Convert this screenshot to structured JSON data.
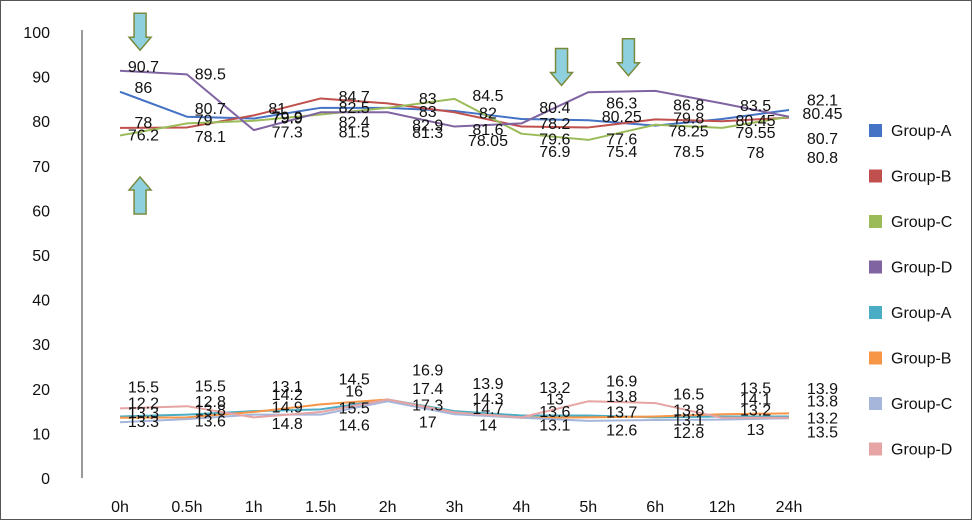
{
  "chart_data": {
    "type": "line",
    "title": "",
    "xlabel": "",
    "ylabel": "",
    "ylim": [
      0,
      100
    ],
    "yticks": [
      "0",
      "10",
      "20",
      "30",
      "40",
      "50",
      "60",
      "70",
      "80",
      "90",
      "100"
    ],
    "categories": [
      "0h",
      "0.5h",
      "1h",
      "1.5h",
      "2h",
      "3h",
      "4h",
      "5h",
      "6h",
      "12h",
      "24h"
    ],
    "grid": false,
    "legend_position": "right",
    "series": [
      {
        "name": "Group-A",
        "color": "#4472C4",
        "values": [
          86.6,
          81.0,
          80.6,
          83.0,
          83.0,
          82.3,
          80.5,
          80.2,
          79.0,
          80.5,
          82.5
        ]
      },
      {
        "name": "Group-B",
        "color": "#C0504D",
        "values": [
          78.5,
          78.6,
          81.3,
          85.1,
          84.0,
          82.0,
          78.8,
          78.6,
          80.4,
          80.0,
          80.8
        ]
      },
      {
        "name": "Group-C",
        "color": "#9BBB59",
        "values": [
          76.8,
          79.5,
          80.1,
          81.5,
          83.0,
          85.0,
          77.2,
          75.8,
          79.2,
          78.5,
          81.0
        ]
      },
      {
        "name": "Group-D",
        "color": "#8064A2",
        "values": [
          91.3,
          90.5,
          78.0,
          82.0,
          82.0,
          78.8,
          79.5,
          86.5,
          86.8,
          84.0,
          81.0
        ]
      },
      {
        "name": "Group-A",
        "color": "#4BACC6",
        "values": [
          13.8,
          14.2,
          15.0,
          15.4,
          17.6,
          15.0,
          14.0,
          14.0,
          13.6,
          13.8,
          13.8
        ]
      },
      {
        "name": "Group-B",
        "color": "#F79646",
        "values": [
          13.5,
          13.6,
          14.8,
          16.5,
          17.6,
          14.7,
          13.5,
          13.6,
          13.8,
          14.3,
          14.5
        ]
      },
      {
        "name": "Group-C",
        "color": "#A5B6DA",
        "values": [
          12.5,
          13.2,
          14.2,
          14.2,
          17.2,
          14.3,
          13.5,
          12.8,
          13.0,
          13.1,
          13.4
        ]
      },
      {
        "name": "Group-D",
        "color": "#E6A4A4",
        "values": [
          15.6,
          16.1,
          13.6,
          14.8,
          17.6,
          14.7,
          13.6,
          17.2,
          16.8,
          13.5,
          13.5
        ]
      }
    ],
    "data_labels": [
      {
        "text": "90.7",
        "cat": 0.35,
        "v": 91
      },
      {
        "text": "86",
        "cat": 0.35,
        "v": 86.3
      },
      {
        "text": "78",
        "cat": 0.35,
        "v": 78.5
      },
      {
        "text": "76.2",
        "cat": 0.35,
        "v": 75.7
      },
      {
        "text": "89.5",
        "cat": 1.35,
        "v": 89.3
      },
      {
        "text": "80.7",
        "cat": 1.35,
        "v": 81.6
      },
      {
        "text": "79",
        "cat": 1.25,
        "v": 79.0
      },
      {
        "text": "78.1",
        "cat": 1.35,
        "v": 75.3
      },
      {
        "text": "81",
        "cat": 2.35,
        "v": 81.6
      },
      {
        "text": "79.9",
        "cat": 2.5,
        "v": 79.7
      },
      {
        "text": "79.9",
        "cat": 2.5,
        "v": 79.5
      },
      {
        "text": "77.3",
        "cat": 2.5,
        "v": 76.3
      },
      {
        "text": "84.7",
        "cat": 3.5,
        "v": 84.3
      },
      {
        "text": "82.5",
        "cat": 3.5,
        "v": 81.8
      },
      {
        "text": "82.4",
        "cat": 3.5,
        "v": 78.6
      },
      {
        "text": "81.5",
        "cat": 3.5,
        "v": 76.3
      },
      {
        "text": "83",
        "cat": 4.6,
        "v": 83.9
      },
      {
        "text": "83",
        "cat": 4.6,
        "v": 80.9
      },
      {
        "text": "82.9",
        "cat": 4.6,
        "v": 77.9
      },
      {
        "text": "81.3",
        "cat": 4.6,
        "v": 76.2
      },
      {
        "text": "84.5",
        "cat": 5.5,
        "v": 84.5
      },
      {
        "text": "82",
        "cat": 5.5,
        "v": 80.6
      },
      {
        "text": "81.6",
        "cat": 5.5,
        "v": 76.9
      },
      {
        "text": "78.05",
        "cat": 5.5,
        "v": 74.4
      },
      {
        "text": "80.4",
        "cat": 6.5,
        "v": 81.8
      },
      {
        "text": "78.2",
        "cat": 6.5,
        "v": 78.3
      },
      {
        "text": "79.6",
        "cat": 6.5,
        "v": 74.8
      },
      {
        "text": "76.9",
        "cat": 6.5,
        "v": 72.0
      },
      {
        "text": "86.3",
        "cat": 7.5,
        "v": 82.8
      },
      {
        "text": "80.25",
        "cat": 7.5,
        "v": 79.8
      },
      {
        "text": "77.6",
        "cat": 7.5,
        "v": 74.8
      },
      {
        "text": "75.4",
        "cat": 7.5,
        "v": 72.0
      },
      {
        "text": "86.8",
        "cat": 8.5,
        "v": 82.4
      },
      {
        "text": "79.8",
        "cat": 8.5,
        "v": 79.5
      },
      {
        "text": "78.25",
        "cat": 8.5,
        "v": 76.6
      },
      {
        "text": "78.5",
        "cat": 8.5,
        "v": 72.0
      },
      {
        "text": "83.5",
        "cat": 9.5,
        "v": 82.3
      },
      {
        "text": "80.45",
        "cat": 9.5,
        "v": 78.9
      },
      {
        "text": "79.55",
        "cat": 9.5,
        "v": 76.2
      },
      {
        "text": "78",
        "cat": 9.5,
        "v": 71.8
      },
      {
        "text": "82.1",
        "cat": 10.5,
        "v": 83.5
      },
      {
        "text": "80.45",
        "cat": 10.5,
        "v": 80.5
      },
      {
        "text": "80.7",
        "cat": 10.5,
        "v": 74.9
      },
      {
        "text": "80.8",
        "cat": 10.5,
        "v": 70.6
      },
      {
        "text": "15.5",
        "cat": 0.35,
        "v": 19.2
      },
      {
        "text": "12.2",
        "cat": 0.35,
        "v": 15.6
      },
      {
        "text": "13.3",
        "cat": 0.35,
        "v": 13.5
      },
      {
        "text": "13.3",
        "cat": 0.35,
        "v": 11.4
      },
      {
        "text": "15.5",
        "cat": 1.35,
        "v": 19.4
      },
      {
        "text": "12.8",
        "cat": 1.35,
        "v": 15.9
      },
      {
        "text": "13.8",
        "cat": 1.35,
        "v": 14.0
      },
      {
        "text": "13.6",
        "cat": 1.35,
        "v": 11.6
      },
      {
        "text": "13.1",
        "cat": 2.5,
        "v": 19.3
      },
      {
        "text": "14.2",
        "cat": 2.5,
        "v": 17.5
      },
      {
        "text": "14.9",
        "cat": 2.5,
        "v": 14.7
      },
      {
        "text": "14.8",
        "cat": 2.5,
        "v": 11.0
      },
      {
        "text": "14.5",
        "cat": 3.5,
        "v": 21.0
      },
      {
        "text": "16",
        "cat": 3.5,
        "v": 18.3
      },
      {
        "text": "15.5",
        "cat": 3.5,
        "v": 14.5
      },
      {
        "text": "14.6",
        "cat": 3.5,
        "v": 10.6
      },
      {
        "text": "16.9",
        "cat": 4.6,
        "v": 23.0
      },
      {
        "text": "17.4",
        "cat": 4.6,
        "v": 18.8
      },
      {
        "text": "17.3",
        "cat": 4.6,
        "v": 15.1
      },
      {
        "text": "17",
        "cat": 4.6,
        "v": 11.3
      },
      {
        "text": "13.9",
        "cat": 5.5,
        "v": 20.0
      },
      {
        "text": "14.3",
        "cat": 5.5,
        "v": 16.6
      },
      {
        "text": "14.7",
        "cat": 5.5,
        "v": 14.3
      },
      {
        "text": "14",
        "cat": 5.5,
        "v": 10.6
      },
      {
        "text": "13.2",
        "cat": 6.5,
        "v": 19.1
      },
      {
        "text": "13",
        "cat": 6.5,
        "v": 16.5
      },
      {
        "text": "13.6",
        "cat": 6.5,
        "v": 13.7
      },
      {
        "text": "13.1",
        "cat": 6.5,
        "v": 10.6
      },
      {
        "text": "16.9",
        "cat": 7.5,
        "v": 20.5
      },
      {
        "text": "13.8",
        "cat": 7.5,
        "v": 17.0
      },
      {
        "text": "13.7",
        "cat": 7.5,
        "v": 13.6
      },
      {
        "text": "12.6",
        "cat": 7.5,
        "v": 9.5
      },
      {
        "text": "16.5",
        "cat": 8.5,
        "v": 17.6
      },
      {
        "text": "13.8",
        "cat": 8.5,
        "v": 14.0
      },
      {
        "text": "13.1",
        "cat": 8.5,
        "v": 11.8
      },
      {
        "text": "12.8",
        "cat": 8.5,
        "v": 9.0
      },
      {
        "text": "13.5",
        "cat": 9.5,
        "v": 19.0
      },
      {
        "text": "14.1",
        "cat": 9.5,
        "v": 16.5
      },
      {
        "text": "13.2",
        "cat": 9.5,
        "v": 14.0
      },
      {
        "text": "13",
        "cat": 9.5,
        "v": 9.6
      },
      {
        "text": "13.9",
        "cat": 10.5,
        "v": 18.8
      },
      {
        "text": "13.8",
        "cat": 10.5,
        "v": 16.0
      },
      {
        "text": "13.2",
        "cat": 10.5,
        "v": 12.2
      },
      {
        "text": "13.5",
        "cat": 10.5,
        "v": 9.1
      }
    ],
    "annotations": [
      {
        "type": "arrow-down",
        "cat": 0.3,
        "v": 104.2
      },
      {
        "type": "arrow-up",
        "cat": 0.3,
        "v": 67.5
      },
      {
        "type": "arrow-down",
        "cat": 6.6,
        "v": 96.3
      },
      {
        "type": "arrow-down",
        "cat": 7.6,
        "v": 98.5
      }
    ]
  }
}
